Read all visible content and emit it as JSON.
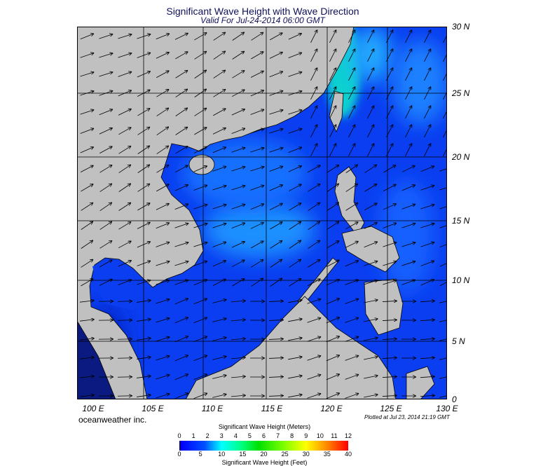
{
  "title": "Significant Wave Height with Wave Direction",
  "subtitle": "Valid For Jul-24-2014 06:00 GMT",
  "lat_labels": [
    "30 N",
    "25 N",
    "20 N",
    "15 N",
    "10 N",
    "5 N",
    "0"
  ],
  "lon_labels": [
    "100 E",
    "105 E",
    "110 E",
    "115 E",
    "120 E",
    "125 E",
    "130 E"
  ],
  "brand": "oceanweather inc.",
  "plotted": "Plotted at Jul 23, 2014 21:19 GMT",
  "colorbar": {
    "title_meters": "Significant Wave Height (Meters)",
    "title_feet": "Significant Wave Height (Feet)",
    "meters_ticks": [
      "0",
      "1",
      "2",
      "3",
      "4",
      "5",
      "6",
      "7",
      "8",
      "9",
      "10",
      "11",
      "12"
    ],
    "feet_ticks": [
      "0",
      "5",
      "10",
      "15",
      "20",
      "25",
      "30",
      "35",
      "40"
    ]
  },
  "colors": {
    "land": "#c0c0c0",
    "ocean": "#0a3ef0",
    "ocean_light": "#1a8cff",
    "ocean_cyan": "#10e0c0"
  }
}
